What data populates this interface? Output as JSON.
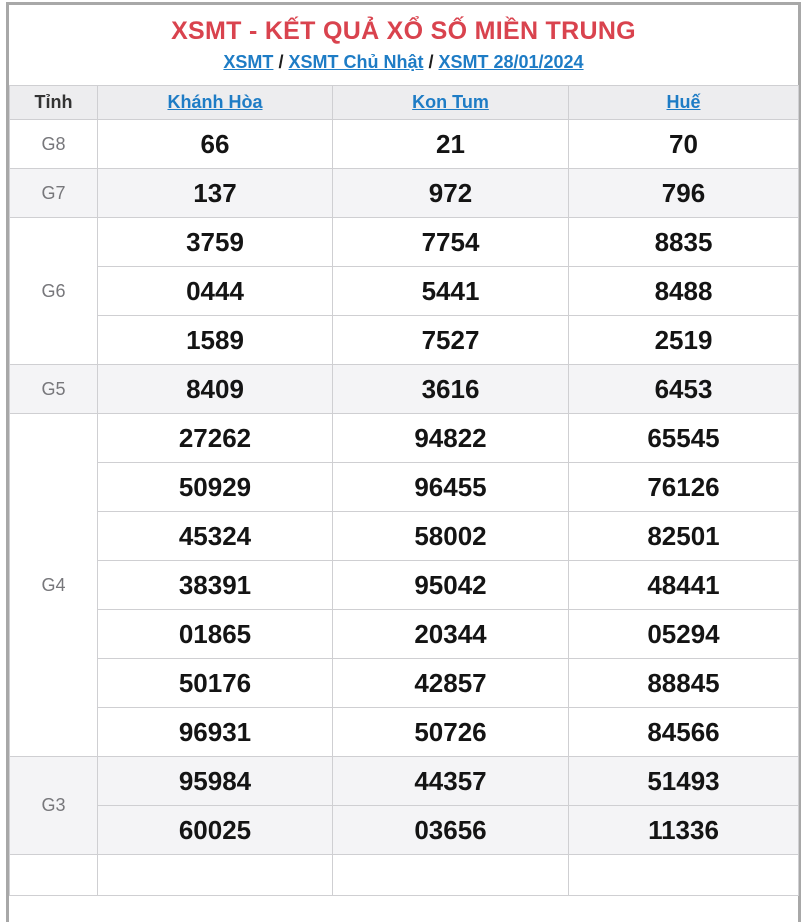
{
  "header": {
    "title": "XSMT - KẾT QUẢ XỔ SỐ MIỀN TRUNG",
    "separator": "/",
    "breadcrumb": [
      {
        "label": "XSMT"
      },
      {
        "label": "XSMT Chủ Nhật"
      },
      {
        "label": "XSMT 28/01/2024"
      }
    ]
  },
  "table": {
    "corner_label": "Tỉnh",
    "provinces": [
      "Khánh Hòa",
      "Kon Tum",
      "Huế"
    ],
    "prize_groups": [
      {
        "label": "G8",
        "shaded": false,
        "rows": [
          [
            "66",
            "21",
            "70"
          ]
        ]
      },
      {
        "label": "G7",
        "shaded": true,
        "rows": [
          [
            "137",
            "972",
            "796"
          ]
        ]
      },
      {
        "label": "G6",
        "shaded": false,
        "rows": [
          [
            "3759",
            "7754",
            "8835"
          ],
          [
            "0444",
            "5441",
            "8488"
          ],
          [
            "1589",
            "7527",
            "2519"
          ]
        ]
      },
      {
        "label": "G5",
        "shaded": true,
        "rows": [
          [
            "8409",
            "3616",
            "6453"
          ]
        ]
      },
      {
        "label": "G4",
        "shaded": false,
        "rows": [
          [
            "27262",
            "94822",
            "65545"
          ],
          [
            "50929",
            "96455",
            "76126"
          ],
          [
            "45324",
            "58002",
            "82501"
          ],
          [
            "38391",
            "95042",
            "48441"
          ],
          [
            "01865",
            "20344",
            "05294"
          ],
          [
            "50176",
            "42857",
            "88845"
          ],
          [
            "96931",
            "50726",
            "84566"
          ]
        ]
      },
      {
        "label": "G3",
        "shaded": true,
        "rows": [
          [
            "95984",
            "44357",
            "51493"
          ],
          [
            "60025",
            "03656",
            "11336"
          ]
        ]
      }
    ]
  },
  "colors": {
    "title_red": "#d9434e",
    "link_blue": "#1e7cc5",
    "header_bg": "#ededef",
    "shaded_bg": "#f4f4f6",
    "cell_border": "#cfcfd2",
    "frame_border": "#a8a8a8",
    "label_gray": "#77777b",
    "number_black": "#141414",
    "separator_color": "#1c1c1c"
  }
}
